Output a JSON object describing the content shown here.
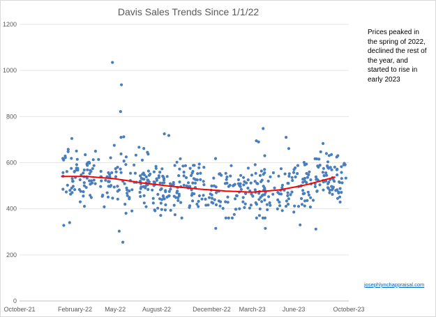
{
  "chart_data": {
    "type": "scatter",
    "title": "Davis Sales Trends Since 1/1/22",
    "xlabel": "",
    "ylabel": "",
    "ylim": [
      0,
      1200
    ],
    "yticks": [
      0,
      200,
      400,
      600,
      800,
      1000,
      1200
    ],
    "xlim": [
      "2021-10-01",
      "2023-10-01"
    ],
    "xticks": [
      "2021-10-01",
      "2022-02-01",
      "2022-05-01",
      "2022-08-01",
      "2022-12-01",
      "2023-03-01",
      "2023-06-01",
      "2023-10-01"
    ],
    "xtick_labels": [
      "October-21",
      "February-22",
      "May-22",
      "August-22",
      "December-22",
      "March-23",
      "June-23",
      "October-23"
    ],
    "grid": "horizontal",
    "legend": "none",
    "marker_color": "#4a7ebb",
    "trendline": {
      "type": "polynomial",
      "color": "#ff0000",
      "points": [
        [
          "2022-01-01",
          540
        ],
        [
          "2022-03-01",
          540
        ],
        [
          "2022-05-01",
          530
        ],
        [
          "2022-07-01",
          512
        ],
        [
          "2022-09-01",
          498
        ],
        [
          "2022-11-01",
          486
        ],
        [
          "2023-01-01",
          477
        ],
        [
          "2023-03-01",
          472
        ],
        [
          "2023-05-01",
          482
        ],
        [
          "2023-07-01",
          505
        ],
        [
          "2023-09-01",
          538
        ]
      ]
    },
    "outliers": [
      [
        "2022-04-25",
        1035
      ],
      [
        "2022-05-15",
        938
      ],
      [
        "2022-05-13",
        822
      ],
      [
        "2022-05-10",
        303
      ],
      [
        "2022-05-18",
        255
      ],
      [
        "2022-01-07",
        328
      ],
      [
        "2022-01-20",
        340
      ],
      [
        "2023-03-25",
        748
      ],
      [
        "2023-03-10",
        695
      ],
      [
        "2023-03-15",
        690
      ],
      [
        "2022-08-18",
        725
      ],
      [
        "2022-08-28",
        718
      ],
      [
        "2022-05-20",
        712
      ],
      [
        "2022-05-14",
        710
      ],
      [
        "2022-01-25",
        705
      ],
      [
        "2023-05-15",
        710
      ],
      [
        "2023-07-20",
        312
      ],
      [
        "2023-06-15",
        330
      ],
      [
        "2023-08-05",
        683
      ],
      [
        "2022-12-10",
        315
      ],
      [
        "2023-03-30",
        315
      ]
    ]
  },
  "annotation": "Prices peaked in the spring of 2022, declined the rest of the year, and started to rise in early 2023",
  "source_link": "josephlynchappraisal.com"
}
